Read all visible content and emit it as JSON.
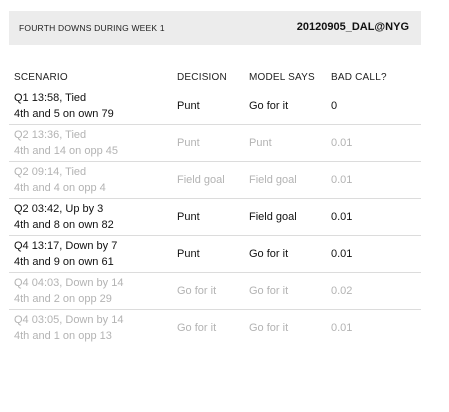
{
  "header": {
    "title": "FOURTH DOWNS DURING WEEK 1",
    "game": "20120905_DAL@NYG"
  },
  "table": {
    "columns": [
      "SCENARIO",
      "DECISION",
      "MODEL SAYS",
      "BAD CALL?"
    ],
    "rows": [
      {
        "line1": "Q1 13:58, Tied",
        "line2": "4th and 5 on own 79",
        "decision": "Punt",
        "model_says": "Go for it",
        "bad_call": "0",
        "dimmed": false
      },
      {
        "line1": "Q2 13:36, Tied",
        "line2": "4th and 14 on opp 45",
        "decision": "Punt",
        "model_says": "Punt",
        "bad_call": "0.01",
        "dimmed": true
      },
      {
        "line1": "Q2 09:14, Tied",
        "line2": "4th and 4 on opp 4",
        "decision": "Field goal",
        "model_says": "Field goal",
        "bad_call": "0.01",
        "dimmed": true
      },
      {
        "line1": "Q2 03:42, Up by 3",
        "line2": "4th and 8 on own 82",
        "decision": "Punt",
        "model_says": "Field goal",
        "bad_call": "0.01",
        "dimmed": false
      },
      {
        "line1": "Q4 13:17, Down by 7",
        "line2": "4th and 9 on own 61",
        "decision": "Punt",
        "model_says": "Go for it",
        "bad_call": "0.01",
        "dimmed": false
      },
      {
        "line1": "Q4 04:03, Down by 14",
        "line2": "4th and 2 on opp 29",
        "decision": "Go for it",
        "model_says": "Go for it",
        "bad_call": "0.02",
        "dimmed": true
      },
      {
        "line1": "Q4 03:05, Down by 14",
        "line2": "4th and 1 on opp 13",
        "decision": "Go for it",
        "model_says": "Go for it",
        "bad_call": "0.01",
        "dimmed": true
      }
    ]
  }
}
